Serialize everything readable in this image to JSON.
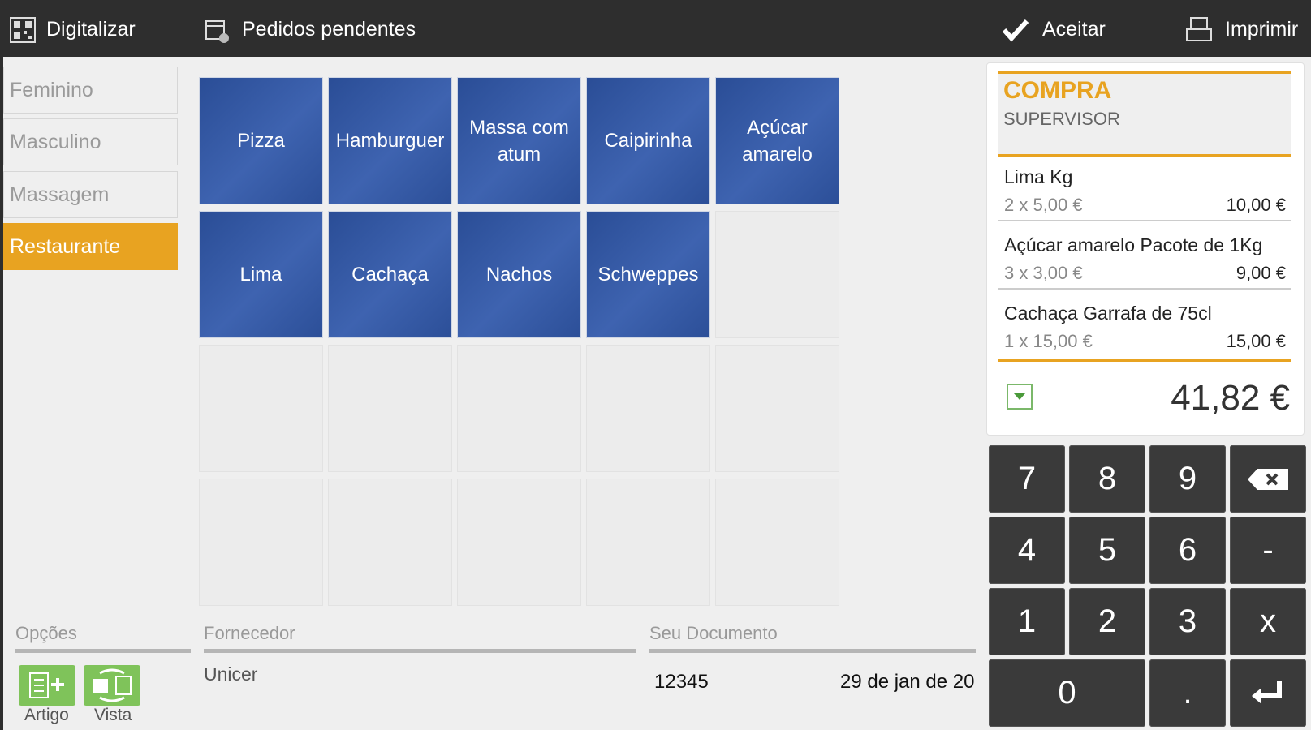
{
  "toolbar": {
    "left": [
      "Digitalizar",
      "Pedidos pendentes"
    ],
    "right": [
      "Aceitar",
      "Imprimir"
    ]
  },
  "categories": {
    "items": [
      "Feminino",
      "Masculino",
      "Massagem",
      "Restaurante"
    ],
    "selected": 3
  },
  "products": [
    "Pizza",
    "Hamburguer",
    "Massa com atum",
    "Caipirinha",
    "Açúcar amarelo",
    "Lima",
    "Cachaça",
    "Nachos",
    "Schweppes"
  ],
  "order": {
    "title": "COMPRA",
    "subtitle": "SUPERVISOR",
    "lines": [
      {
        "name": "Lima Kg",
        "qty": "2 x 5,00 €",
        "total": "10,00 €"
      },
      {
        "name": "Açúcar amarelo Pacote de 1Kg",
        "qty": "3 x 3,00 €",
        "total": "9,00 €"
      },
      {
        "name": "Cachaça Garrafa de 75cl",
        "qty": "1 x 15,00 €",
        "total": "15,00 €"
      }
    ],
    "total": "41,82 €"
  },
  "keypad": [
    "7",
    "8",
    "9",
    "4",
    "5",
    "6",
    "-",
    "1",
    "2",
    "3",
    "x",
    "0",
    "."
  ],
  "bottom": {
    "options_label": "Opções",
    "options": [
      "Artigo",
      "Vista"
    ],
    "supplier_label": "Fornecedor",
    "supplier": "Unicer",
    "document_label": "Seu Documento",
    "document": "12345",
    "date": "29 de jan de 20"
  }
}
